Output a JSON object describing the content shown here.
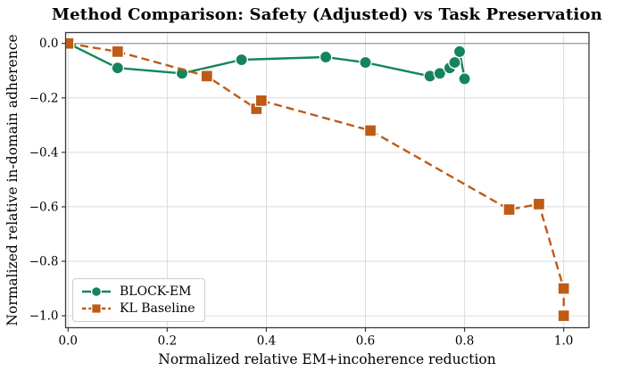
{
  "chart_data": {
    "type": "line",
    "title": "Method Comparison: Safety (Adjusted) vs Task Preservation",
    "xlabel": "Normalized relative EM+incoherence reduction",
    "ylabel": "Normalized relative in-domain adherence",
    "xlim": [
      -0.005,
      1.051
    ],
    "ylim": [
      -1.044,
      0.04
    ],
    "grid": true,
    "zero_line_y": 0.0,
    "legend_position": "lower left",
    "x_ticks": [
      {
        "value": 0.0,
        "label": "0.0"
      },
      {
        "value": 0.2,
        "label": "0.2"
      },
      {
        "value": 0.4,
        "label": "0.4"
      },
      {
        "value": 0.6,
        "label": "0.6"
      },
      {
        "value": 0.8,
        "label": "0.8"
      },
      {
        "value": 1.0,
        "label": "1.0"
      }
    ],
    "y_ticks": [
      {
        "value": 0.0,
        "label": "0.0"
      },
      {
        "value": -0.2,
        "label": "−0.2"
      },
      {
        "value": -0.4,
        "label": "−0.4"
      },
      {
        "value": -0.6,
        "label": "−0.6"
      },
      {
        "value": -0.8,
        "label": "−0.8"
      },
      {
        "value": -1.0,
        "label": "−1.0"
      }
    ],
    "series": [
      {
        "name": "BLOCK-EM",
        "color": "#15845C",
        "marker": "circle",
        "linestyle": "solid",
        "points": [
          [
            0.0,
            0.0
          ],
          [
            0.1,
            -0.09
          ],
          [
            0.23,
            -0.11
          ],
          [
            0.35,
            -0.06
          ],
          [
            0.52,
            -0.05
          ],
          [
            0.6,
            -0.07
          ],
          [
            0.73,
            -0.12
          ],
          [
            0.75,
            -0.11
          ],
          [
            0.77,
            -0.09
          ],
          [
            0.78,
            -0.07
          ],
          [
            0.79,
            -0.03
          ],
          [
            0.8,
            -0.13
          ]
        ]
      },
      {
        "name": "KL Baseline",
        "color": "#BE5B17",
        "marker": "square",
        "linestyle": "dashed",
        "points": [
          [
            0.0,
            0.0
          ],
          [
            0.1,
            -0.03
          ],
          [
            0.28,
            -0.12
          ],
          [
            0.38,
            -0.24
          ],
          [
            0.39,
            -0.21
          ],
          [
            0.61,
            -0.32
          ],
          [
            0.89,
            -0.61
          ],
          [
            0.95,
            -0.59
          ],
          [
            1.0,
            -0.9
          ],
          [
            1.0,
            -1.0
          ]
        ]
      }
    ],
    "colors": {
      "grid": "#dcdcdc",
      "zero_line": "#a3a3a3",
      "spine": "#3a3a3a",
      "text": "#000000",
      "background": "#ffffff",
      "marker_edge": "#ffffff",
      "legend_border": "#cccccc",
      "legend_bg": "#ffffff"
    }
  }
}
